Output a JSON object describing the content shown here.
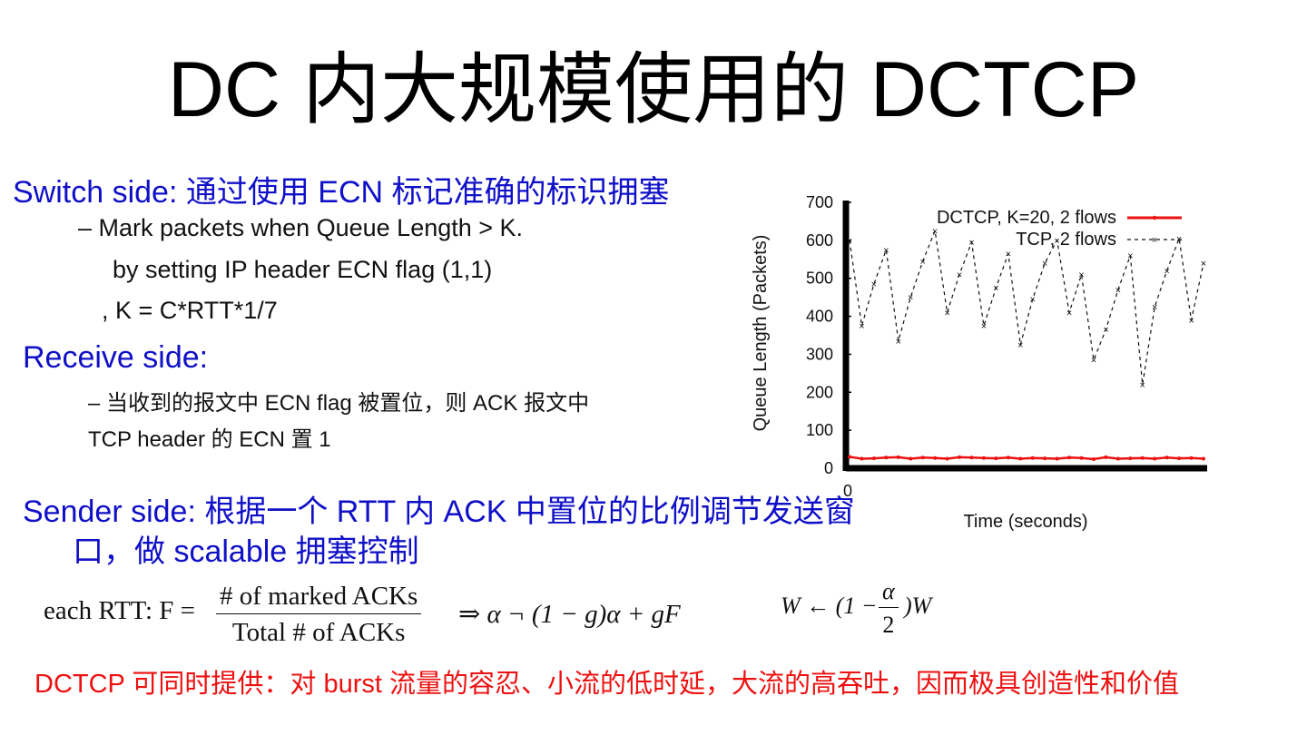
{
  "slide": {
    "title": "DC 内大规模使用的 DCTCP",
    "switch": {
      "heading": "Switch side:   通过使用 ECN 标记准确的标识拥塞",
      "bullet": "–    Mark packets when Queue Length > K.",
      "line2": "by setting IP header ECN flag (1,1)",
      "line3": ", K = C*RTT*1/7"
    },
    "receive": {
      "heading": "Receive side:",
      "bullet": "–   当收到的报文中 ECN flag 被置位，则 ACK 报文中",
      "line2": "TCP header 的  ECN  置 1"
    },
    "sender": {
      "heading": "Sender side:   根据一个 RTT 内 ACK 中置位的比例调节发送窗",
      "line2": "口，做 scalable 拥塞控制"
    },
    "formula": {
      "lhs": "each RTT: F =",
      "numerator": "# of marked ACKs",
      "denominator": "Total # of ACKs",
      "update": "⇒   α ¬  (1 − g)α + gF",
      "window_lhs": "W ← (1 −",
      "window_num": "α",
      "window_den": "2",
      "window_rhs": ")W"
    },
    "conclusion": "DCTCP 可同时提供：对 burst 流量的容忍、小流的低时延，大流的高吞吐，因而极具创造性和价值"
  },
  "chart_data": {
    "type": "line",
    "xlabel": "Time (seconds)",
    "ylabel": "Queue Length (Packets)",
    "ylim": [
      0,
      700
    ],
    "yticks": [
      0,
      100,
      200,
      300,
      400,
      500,
      600,
      700
    ],
    "xtick_label": "0",
    "legend_position": "top-right",
    "series": [
      {
        "name": "DCTCP, K=20, 2 flows",
        "color": "#ee1010",
        "style": "solid",
        "x": [
          0,
          1,
          2,
          3,
          4,
          5,
          6,
          7,
          8,
          9,
          10,
          11,
          12,
          13,
          14,
          15,
          16,
          17,
          18,
          19,
          20,
          21,
          22,
          23,
          24,
          25,
          26,
          27,
          28,
          29
        ],
        "y": [
          30,
          25,
          26,
          28,
          29,
          25,
          28,
          27,
          25,
          29,
          28,
          27,
          26,
          28,
          25,
          27,
          26,
          25,
          28,
          27,
          24,
          29,
          25,
          26,
          27,
          25,
          28,
          26,
          27,
          25
        ]
      },
      {
        "name": "TCP, 2 flows",
        "color": "#111111",
        "style": "dashed",
        "x": [
          0,
          1,
          2,
          3,
          4,
          5,
          6,
          7,
          8,
          9,
          10,
          11,
          12,
          13,
          14,
          15,
          16,
          17,
          18,
          19,
          20,
          21,
          22,
          23,
          24,
          25,
          26,
          27,
          28,
          29
        ],
        "y": [
          600,
          375,
          485,
          575,
          335,
          450,
          545,
          625,
          410,
          510,
          595,
          375,
          475,
          565,
          325,
          445,
          540,
          600,
          410,
          510,
          285,
          365,
          470,
          560,
          220,
          425,
          520,
          605,
          390,
          540
        ]
      }
    ]
  }
}
